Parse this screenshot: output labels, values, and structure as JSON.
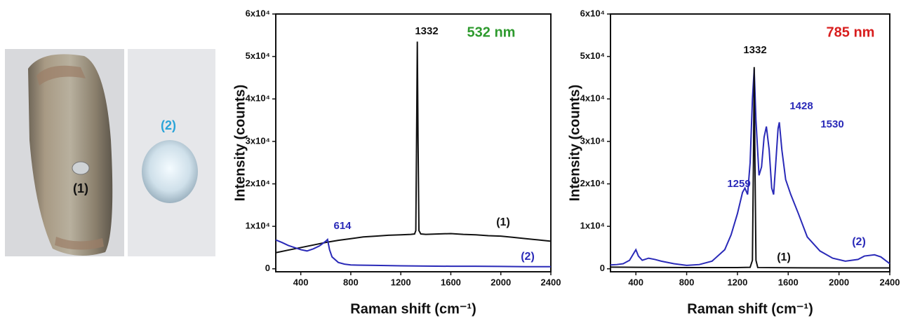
{
  "photo": {
    "labels": [
      "(1)",
      "(2)"
    ]
  },
  "chart_data": [
    {
      "type": "line",
      "title": "532 nm",
      "x_label": "Raman shift (cm⁻¹)",
      "y_label": "Intensity (counts)",
      "xlim": [
        200,
        2400
      ],
      "xticks": [
        400,
        800,
        1200,
        1600,
        2000,
        2400
      ],
      "ylim": [
        -700,
        60000
      ],
      "yticks": [
        0,
        {
          "value": 10000,
          "label": "1x10⁴"
        },
        {
          "value": 20000,
          "label": "2x10⁴"
        },
        {
          "value": 30000,
          "label": "3x10⁴"
        },
        {
          "value": 40000,
          "label": "4x10⁴"
        },
        {
          "value": 50000,
          "label": "5x10⁴"
        },
        {
          "value": 60000,
          "label": "6x10⁴"
        }
      ],
      "title_color": "#2e9a2e",
      "annotations": [
        {
          "text": "1332",
          "color": "#111111"
        },
        {
          "text": "614",
          "color": "#2a2ab8"
        }
      ],
      "series": [
        {
          "name": "(1)",
          "color": "#111111",
          "x": [
            200,
            300,
            400,
            500,
            600,
            700,
            800,
            900,
            1000,
            1100,
            1200,
            1280,
            1310,
            1320,
            1326,
            1332,
            1338,
            1345,
            1360,
            1400,
            1500,
            1600,
            1700,
            1800,
            1900,
            2000,
            2100,
            2200,
            2300,
            2400
          ],
          "values": [
            3800,
            4400,
            5000,
            5600,
            6200,
            6700,
            7100,
            7500,
            7700,
            7900,
            8000,
            8100,
            8200,
            9000,
            30000,
            53500,
            30000,
            9000,
            8200,
            8100,
            8200,
            8300,
            8100,
            8000,
            7800,
            7700,
            7400,
            7100,
            6800,
            6500
          ]
        },
        {
          "name": "(2)",
          "color": "#2a2ab8",
          "x": [
            200,
            250,
            300,
            350,
            400,
            450,
            500,
            550,
            600,
            614,
            630,
            650,
            700,
            750,
            800,
            1000,
            1200,
            1400,
            1600,
            1800,
            2000,
            2200,
            2400
          ],
          "values": [
            6800,
            6200,
            5500,
            5000,
            4500,
            4200,
            4700,
            5400,
            6500,
            6900,
            4500,
            2800,
            1500,
            1100,
            900,
            800,
            700,
            650,
            600,
            600,
            550,
            500,
            500
          ]
        }
      ]
    },
    {
      "type": "line",
      "title": "785 nm",
      "x_label": "Raman shift (cm⁻¹)",
      "y_label": "Intensity (counts)",
      "xlim": [
        200,
        2400
      ],
      "xticks": [
        400,
        800,
        1200,
        1600,
        2000,
        2400
      ],
      "ylim": [
        -700,
        60000
      ],
      "yticks": [
        0,
        {
          "value": 10000,
          "label": "1x10⁴"
        },
        {
          "value": 20000,
          "label": "2x10⁴"
        },
        {
          "value": 30000,
          "label": "3x10⁴"
        },
        {
          "value": 40000,
          "label": "4x10⁴"
        },
        {
          "value": 50000,
          "label": "5x10⁴"
        },
        {
          "value": 60000,
          "label": "6x10⁴"
        }
      ],
      "title_color": "#d81e1e",
      "annotations": [
        {
          "text": "1332",
          "color": "#111111"
        },
        {
          "text": "1428",
          "color": "#2a2ab8"
        },
        {
          "text": "1530",
          "color": "#2a2ab8"
        },
        {
          "text": "1259",
          "color": "#2a2ab8"
        }
      ],
      "series": [
        {
          "name": "(2)",
          "color": "#2a2ab8",
          "x": [
            200,
            250,
            300,
            350,
            400,
            420,
            450,
            500,
            550,
            600,
            700,
            800,
            900,
            1000,
            1100,
            1150,
            1200,
            1240,
            1259,
            1280,
            1300,
            1318,
            1332,
            1346,
            1370,
            1390,
            1410,
            1428,
            1450,
            1470,
            1485,
            1500,
            1520,
            1530,
            1550,
            1580,
            1620,
            1680,
            1750,
            1850,
            1950,
            2050,
            2150,
            2200,
            2280,
            2330,
            2400
          ],
          "values": [
            900,
            1000,
            1200,
            2000,
            4500,
            3000,
            2000,
            2500,
            2200,
            1800,
            1200,
            800,
            1000,
            1800,
            4500,
            8000,
            13000,
            18000,
            19000,
            17500,
            25000,
            40000,
            47000,
            35000,
            22000,
            24000,
            31000,
            33500,
            28000,
            19000,
            17500,
            24000,
            33000,
            34500,
            28000,
            21000,
            17500,
            13000,
            7500,
            4200,
            2500,
            1800,
            2200,
            3000,
            3300,
            2800,
            1200
          ]
        },
        {
          "name": "(1)",
          "color": "#111111",
          "x": [
            200,
            400,
            800,
            1200,
            1300,
            1318,
            1326,
            1332,
            1338,
            1346,
            1360,
            1600,
            2000,
            2400
          ],
          "values": [
            400,
            350,
            300,
            300,
            350,
            2000,
            25000,
            47500,
            25000,
            2000,
            300,
            250,
            200,
            200
          ]
        }
      ]
    }
  ]
}
